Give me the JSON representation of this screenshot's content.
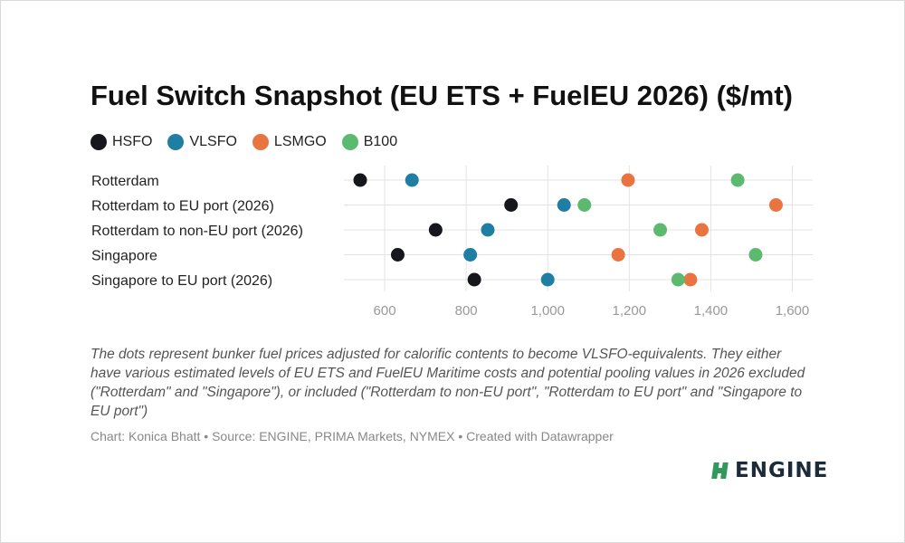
{
  "chart_data": {
    "type": "scatter",
    "title": "Fuel Switch Snapshot (EU ETS + FuelEU 2026) ($/mt)",
    "categories": [
      "Rotterdam",
      "Rotterdam to EU port (2026)",
      "Rotterdam to non-EU port (2026)",
      "Singapore",
      "Singapore to EU port (2026)"
    ],
    "series": [
      {
        "name": "HSFO",
        "color": "#15171c",
        "values": [
          540,
          910,
          725,
          632,
          820
        ]
      },
      {
        "name": "VLSFO",
        "color": "#1f7ea1",
        "values": [
          667,
          1040,
          853,
          810,
          1000
        ]
      },
      {
        "name": "LSMGO",
        "color": "#ea7440",
        "values": [
          1197,
          1560,
          1378,
          1173,
          1350
        ]
      },
      {
        "name": "B100",
        "color": "#5bba6f",
        "values": [
          1466,
          1090,
          1276,
          1510,
          1320
        ]
      }
    ],
    "x_ticks": [
      600,
      800,
      1000,
      1200,
      1400,
      1600
    ],
    "x_tick_labels": [
      "600",
      "800",
      "1,000",
      "1,200",
      "1,400",
      "1,600"
    ],
    "xlim": [
      500,
      1650
    ],
    "grid": true,
    "legend_position": "top-left"
  },
  "note": "The dots represent bunker fuel prices adjusted for calorific contents to become VLSFO-equivalents. They either have various estimated levels of EU ETS and FuelEU Maritime costs and potential pooling values in 2026 excluded (\"Rotterdam\" and \"Singapore\"), or included (\"Rotterdam to non-EU port\", \"Rotterdam to EU port\" and \"Singapore to EU port\")",
  "credits": "Chart: Konica Bhatt • Source: ENGINE, PRIMA Markets, NYMEX • Created with Datawrapper",
  "brand": {
    "name": "ENGINE",
    "color": "#1c2b39",
    "mark_color": "#2f9a5c",
    "icon": "engine-logo-icon"
  }
}
